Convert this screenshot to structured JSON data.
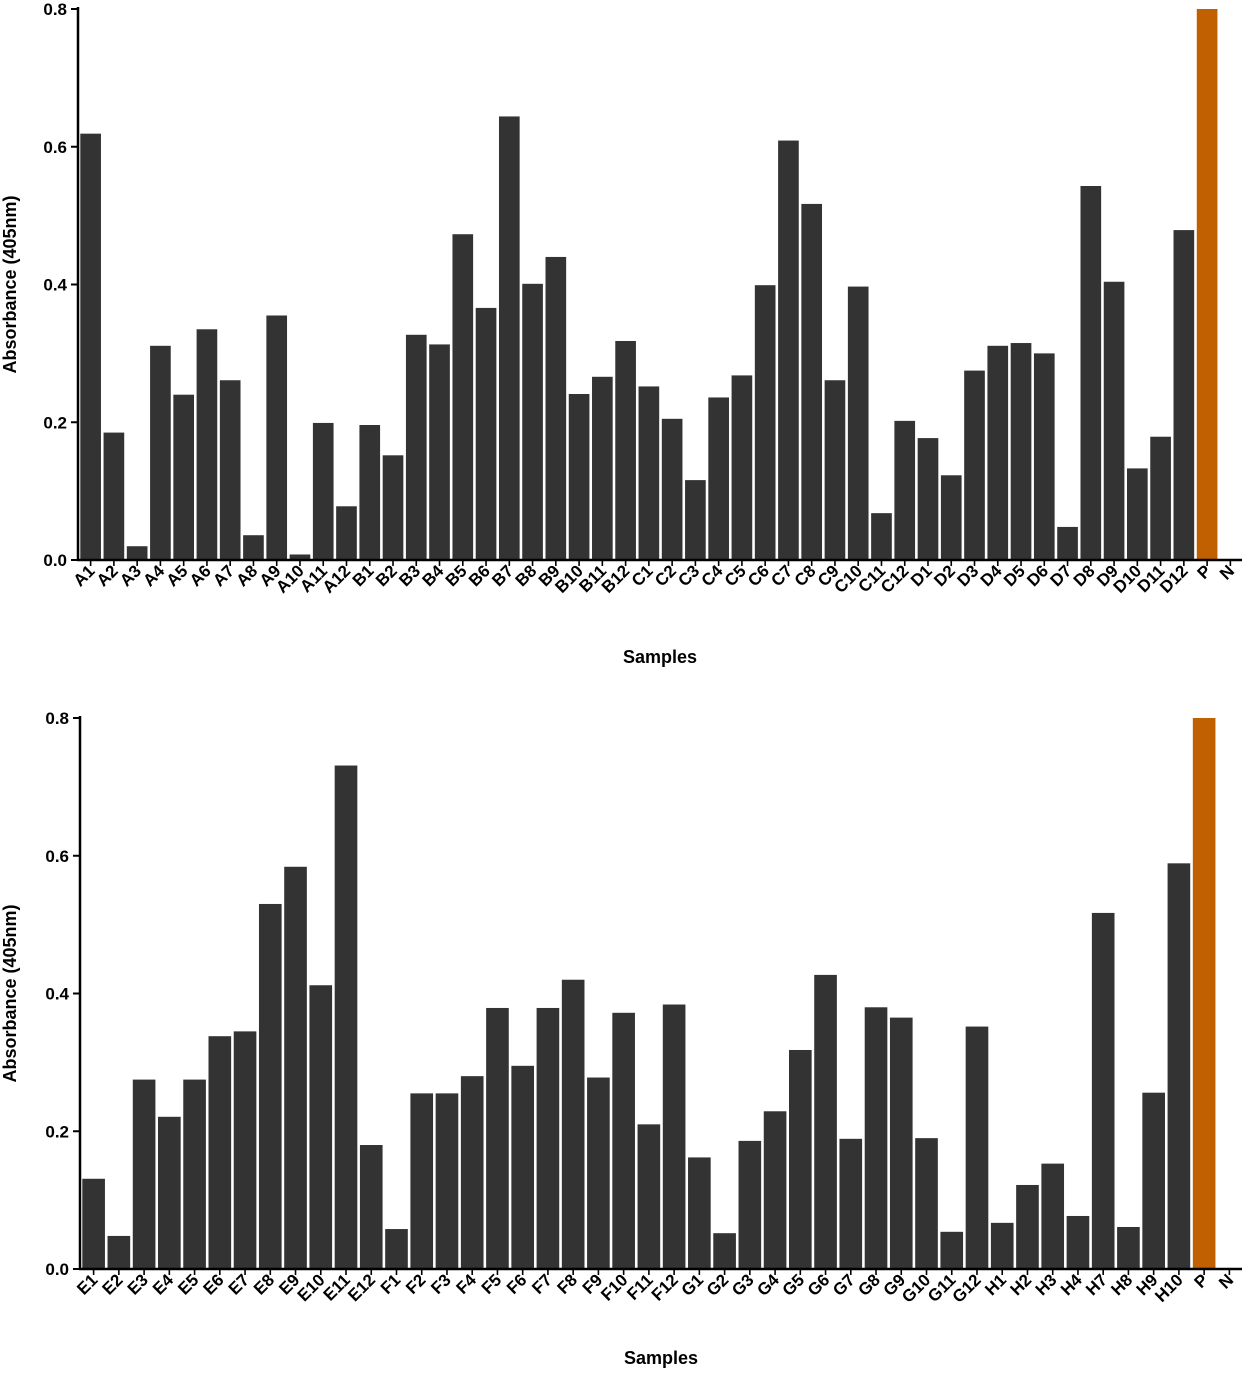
{
  "chart_data": [
    {
      "type": "bar",
      "title": "",
      "xlabel": "Samples",
      "ylabel": "Absorbance (405nm)",
      "ylim": [
        0,
        0.8
      ],
      "yticks": [
        "0.0",
        "0.2",
        "0.4",
        "0.6",
        "0.8"
      ],
      "categories": [
        "A1",
        "A2",
        "A3",
        "A4",
        "A5",
        "A6",
        "A7",
        "A8",
        "A9",
        "A10",
        "A11",
        "A12",
        "B1",
        "B2",
        "B3",
        "B4",
        "B5",
        "B6",
        "B7",
        "B8",
        "B9",
        "B10",
        "B11",
        "B12",
        "C1",
        "C2",
        "C3",
        "C4",
        "C5",
        "C6",
        "C7",
        "C8",
        "C9",
        "C10",
        "C11",
        "C12",
        "D1",
        "D2",
        "D3",
        "D4",
        "D5",
        "D6",
        "D7",
        "D8",
        "D9",
        "D10",
        "D11",
        "D12",
        "P",
        "N"
      ],
      "values": [
        0.619,
        0.185,
        0.02,
        0.311,
        0.24,
        0.335,
        0.261,
        0.036,
        0.355,
        0.008,
        0.199,
        0.078,
        0.196,
        0.152,
        0.327,
        0.313,
        0.473,
        0.366,
        0.644,
        0.401,
        0.44,
        0.241,
        0.266,
        0.318,
        0.252,
        0.205,
        0.116,
        0.236,
        0.268,
        0.399,
        0.609,
        0.517,
        0.261,
        0.397,
        0.068,
        0.202,
        0.177,
        0.123,
        0.275,
        0.311,
        0.315,
        0.3,
        0.048,
        0.543,
        0.404,
        0.133,
        0.179,
        0.479,
        0.8,
        0.0
      ],
      "colors": {
        "default": "#333333",
        "P": "#c06000"
      }
    },
    {
      "type": "bar",
      "title": "",
      "xlabel": "Samples",
      "ylabel": "Absorbance (405nm)",
      "ylim": [
        0,
        0.8
      ],
      "yticks": [
        "0.0",
        "0.2",
        "0.4",
        "0.6",
        "0.8"
      ],
      "categories": [
        "E1",
        "E2",
        "E3",
        "E4",
        "E5",
        "E6",
        "E7",
        "E8",
        "E9",
        "E10",
        "E11",
        "E12",
        "F1",
        "F2",
        "F3",
        "F4",
        "F5",
        "F6",
        "F7",
        "F8",
        "F9",
        "F10",
        "F11",
        "F12",
        "G1",
        "G2",
        "G3",
        "G4",
        "G5",
        "G6",
        "G7",
        "G8",
        "G9",
        "G10",
        "G11",
        "G12",
        "H1",
        "H2",
        "H3",
        "H4",
        "H7",
        "H8",
        "H9",
        "H10",
        "P",
        "N"
      ],
      "values": [
        0.131,
        0.048,
        0.275,
        0.221,
        0.275,
        0.338,
        0.345,
        0.53,
        0.584,
        0.412,
        0.731,
        0.18,
        0.058,
        0.255,
        0.255,
        0.28,
        0.379,
        0.295,
        0.379,
        0.42,
        0.278,
        0.372,
        0.21,
        0.384,
        0.162,
        0.052,
        0.186,
        0.229,
        0.318,
        0.427,
        0.189,
        0.38,
        0.365,
        0.19,
        0.054,
        0.352,
        0.067,
        0.122,
        0.153,
        0.077,
        0.517,
        0.061,
        0.256,
        0.589,
        0.8,
        0.0
      ],
      "colors": {
        "default": "#333333",
        "P": "#c06000"
      }
    }
  ]
}
